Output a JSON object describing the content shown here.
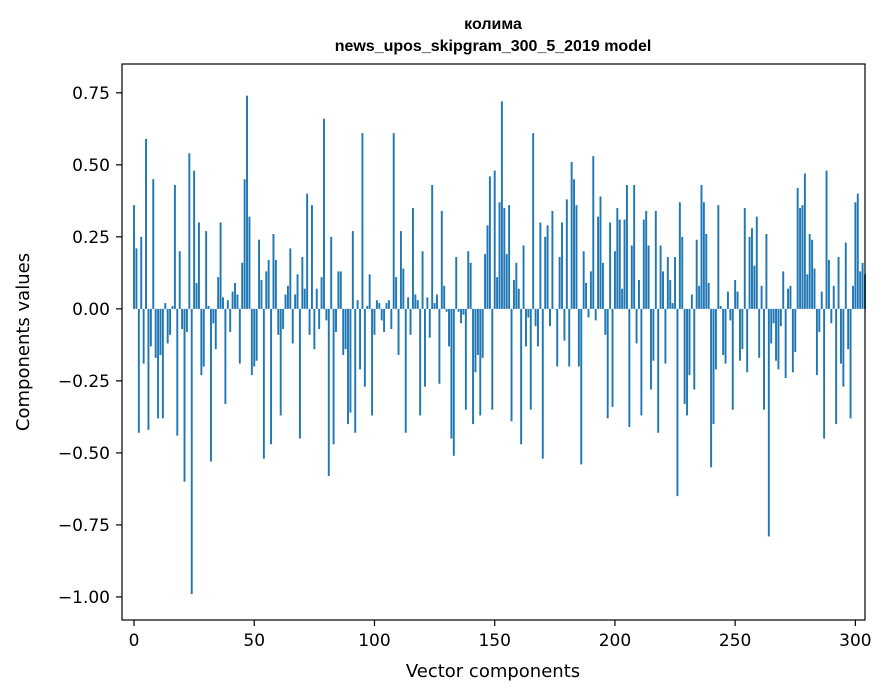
{
  "chart_data": {
    "type": "bar",
    "title": "колима",
    "subtitle": "news_upos_skipgram_300_5_2019 model",
    "xlabel": "Vector components",
    "ylabel": "Components values",
    "xlim": [
      -5,
      304
    ],
    "ylim": [
      -1.08,
      0.85
    ],
    "xticks": [
      0,
      50,
      100,
      150,
      200,
      250,
      300
    ],
    "xtick_labels": [
      "0",
      "50",
      "100",
      "150",
      "200",
      "250",
      "300"
    ],
    "yticks": [
      0.75,
      0.5,
      0.25,
      0.0,
      -0.25,
      -0.5,
      -0.75,
      -1.0
    ],
    "ytick_labels": [
      "0.75",
      "0.50",
      "0.25",
      "0.00",
      "−0.25",
      "−0.50",
      "−0.75",
      "−1.00"
    ],
    "bar_color": "#1f77b4",
    "values": [
      0.36,
      0.21,
      -0.43,
      0.25,
      -0.19,
      0.59,
      -0.42,
      -0.13,
      0.45,
      -0.17,
      -0.38,
      -0.16,
      -0.38,
      0.02,
      -0.12,
      -0.09,
      0.01,
      0.43,
      -0.44,
      0.2,
      -0.07,
      -0.6,
      -0.08,
      0.54,
      -0.99,
      0.48,
      0.09,
      0.3,
      -0.23,
      -0.2,
      0.27,
      0.01,
      -0.53,
      -0.05,
      -0.14,
      0.11,
      0.3,
      0.04,
      -0.33,
      0.03,
      -0.08,
      0.06,
      0.09,
      0.05,
      -0.19,
      0.16,
      0.45,
      0.74,
      0.32,
      -0.23,
      -0.2,
      -0.18,
      0.24,
      0.1,
      -0.52,
      0.13,
      0.17,
      -0.47,
      0.26,
      0.17,
      -0.09,
      -0.37,
      -0.07,
      0.05,
      0.08,
      0.21,
      -0.12,
      0.05,
      0.12,
      -0.45,
      0.18,
      0.07,
      0.4,
      -0.09,
      0.36,
      -0.14,
      0.07,
      -0.07,
      0.11,
      0.66,
      -0.04,
      -0.58,
      0.25,
      -0.47,
      -0.08,
      0.13,
      0.13,
      -0.16,
      -0.14,
      -0.4,
      -0.36,
      0.27,
      -0.43,
      0.03,
      -0.21,
      0.61,
      -0.27,
      0.01,
      0.12,
      -0.37,
      -0.09,
      0.03,
      0.02,
      -0.04,
      -0.08,
      0.02,
      0.03,
      -0.07,
      0.61,
      0.11,
      -0.16,
      0.27,
      0.14,
      -0.43,
      0.04,
      -0.09,
      0.35,
      0.05,
      0.03,
      -0.37,
      0.2,
      -0.27,
      0.04,
      -0.1,
      0.43,
      0.02,
      0.05,
      -0.26,
      0.34,
      0.08,
      -0.01,
      -0.13,
      -0.45,
      -0.51,
      0.18,
      -0.01,
      -0.05,
      -0.02,
      -0.35,
      0.2,
      0.16,
      -0.4,
      -0.22,
      -0.16,
      -0.37,
      -0.17,
      0.19,
      0.29,
      0.46,
      -0.35,
      0.48,
      0.11,
      0.37,
      0.72,
      0.35,
      0.19,
      0.36,
      -0.39,
      0.1,
      0.16,
      0.07,
      -0.47,
      0.22,
      -0.13,
      -0.03,
      -0.35,
      0.61,
      -0.06,
      -0.13,
      0.3,
      -0.52,
      0.25,
      0.29,
      -0.06,
      0.34,
      0.0,
      -0.2,
      0.18,
      0.3,
      -0.11,
      0.38,
      -0.2,
      0.51,
      0.45,
      0.36,
      -0.2,
      -0.54,
      0.2,
      0.09,
      -0.03,
      0.13,
      0.53,
      -0.04,
      0.32,
      0.39,
      0.16,
      -0.09,
      -0.38,
      0.3,
      -0.34,
      0.2,
      0.35,
      0.31,
      0.07,
      0.31,
      0.43,
      -0.41,
      0.22,
      0.43,
      -0.12,
      0.1,
      -0.37,
      0.31,
      0.34,
      0.22,
      -0.28,
      -0.18,
      0.34,
      -0.43,
      0.22,
      0.13,
      -0.19,
      0.18,
      0.1,
      0.02,
      0.18,
      -0.65,
      0.37,
      0.25,
      -0.33,
      -0.37,
      -0.23,
      0.05,
      -0.28,
      0.24,
      0.08,
      0.43,
      0.37,
      0.26,
      0.09,
      -0.55,
      -0.4,
      -0.21,
      0.36,
      0.01,
      -0.16,
      -0.19,
      0.06,
      -0.04,
      -0.35,
      0.1,
      0.06,
      -0.18,
      -0.14,
      0.35,
      -0.22,
      0.25,
      0.28,
      0.15,
      0.32,
      -0.17,
      0.08,
      -0.35,
      0.26,
      -0.79,
      -0.12,
      -0.05,
      -0.18,
      -0.21,
      -0.06,
      0.13,
      -0.24,
      0.07,
      0.08,
      -0.22,
      -0.15,
      0.42,
      0.35,
      0.36,
      0.47,
      0.12,
      0.26,
      0.24,
      0.14,
      -0.23,
      -0.08,
      0.06,
      -0.45,
      0.48,
      0.17,
      -0.05,
      0.08,
      -0.4,
      0.18,
      -0.19,
      -0.27,
      0.23,
      -0.14,
      -0.38,
      0.08,
      0.37,
      0.4,
      0.13,
      0.16,
      0.12
    ]
  }
}
